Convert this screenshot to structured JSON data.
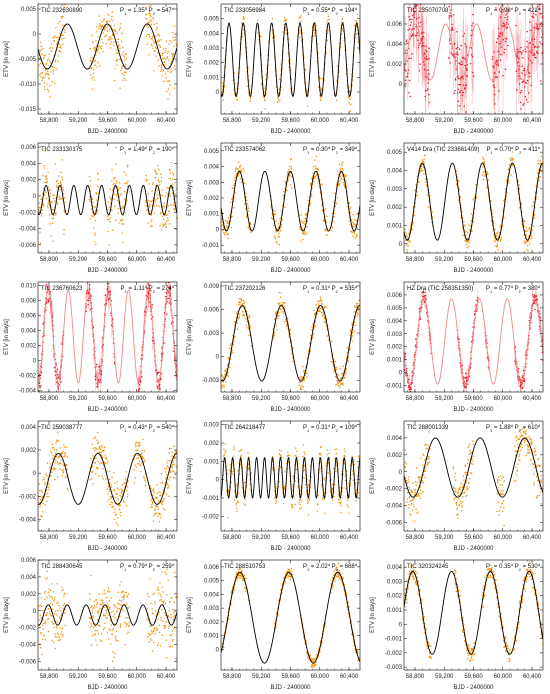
{
  "colors": {
    "orange": "#f5950f",
    "red": "#e8121e",
    "model": "#000000",
    "model_faint": "#f08a8a"
  },
  "shared": {
    "xlabel": "BJD - 2400000",
    "ylabel": "ETV [in days]",
    "xticks": [
      "58,800",
      "59,200",
      "59,600",
      "60,000",
      "60,400"
    ],
    "xtick_values": [
      58800,
      59200,
      59600,
      60000,
      60400
    ],
    "xlim": [
      58650,
      60550
    ]
  },
  "chart_data": [
    {
      "type": "scatter",
      "title": "TIC 232630890",
      "p1": "1.35",
      "p2": "547",
      "color": "orange",
      "faint": false,
      "ylim": [
        -0.016,
        0.006
      ],
      "yticks": [
        "0.005",
        "0",
        "-0.005",
        "-0.010",
        "-0.015"
      ],
      "ytick_values": [
        0.005,
        0,
        -0.005,
        -0.01,
        -0.015
      ],
      "model": {
        "amp": 0.0045,
        "offset": -0.0025,
        "period": 547,
        "phase": 59050
      },
      "noise": 0.0025,
      "coverage": [
        [
          58660,
          59020
        ],
        [
          59360,
          59860
        ],
        [
          60120,
          60550
        ]
      ]
    },
    {
      "type": "scatter",
      "title": "TIC 233056984",
      "p1": "0.55",
      "p2": "194",
      "color": "orange",
      "faint": false,
      "ylim": [
        -0.0015,
        0.006
      ],
      "yticks": [
        "0.005",
        "0.004",
        "0.003",
        "0.002",
        "0.001",
        "0"
      ],
      "ytick_values": [
        0.005,
        0.004,
        0.003,
        0.002,
        0.001,
        0
      ],
      "model": {
        "amp": 0.0025,
        "offset": 0.0022,
        "period": 194,
        "phase": 58760
      },
      "noise": 0.0004,
      "coverage": [
        [
          58660,
          58740
        ],
        [
          58820,
          59060
        ],
        [
          59150,
          59300
        ],
        [
          59350,
          59620
        ],
        [
          59700,
          59840
        ],
        [
          59880,
          60130
        ],
        [
          60220,
          60540
        ]
      ]
    },
    {
      "type": "scatter",
      "title": "TIC 235070708",
      "p1": "0.98",
      "p2": "421",
      "color": "red",
      "faint": true,
      "ylim": [
        -0.003,
        0.008
      ],
      "yticks": [
        "0.006",
        "0.004",
        "0.002",
        "0"
      ],
      "ytick_values": [
        0.006,
        0.004,
        0.002,
        0
      ],
      "model": {
        "amp": 0.0028,
        "offset": 0.0032,
        "period": 421,
        "phase": 58800
      },
      "noise": 0.0018,
      "coverage": [
        [
          58660,
          59000
        ],
        [
          59260,
          59520
        ],
        [
          59560,
          59600
        ],
        [
          59860,
          60080
        ],
        [
          60180,
          60550
        ]
      ]
    },
    {
      "type": "scatter",
      "title": "TIC 233130175",
      "p1": "1.49",
      "p2": "190",
      "color": "orange",
      "faint": false,
      "ylim": [
        -0.007,
        0.0065
      ],
      "yticks": [
        "0.006",
        "0.004",
        "0.002",
        "0",
        "-0.002",
        "-0.004",
        "-0.006"
      ],
      "ytick_values": [
        0.006,
        0.004,
        0.002,
        0,
        -0.002,
        -0.004,
        -0.006
      ],
      "model": {
        "amp": 0.0018,
        "offset": -0.0005,
        "period": 190,
        "phase": 58760
      },
      "noise": 0.0016,
      "coverage": [
        [
          58660,
          59020
        ],
        [
          59350,
          59480
        ],
        [
          59600,
          59880
        ],
        [
          60120,
          60550
        ]
      ]
    },
    {
      "type": "scatter",
      "title": "TIC 233574062",
      "p1": "0.30",
      "p2": "349",
      "color": "orange",
      "faint": false,
      "ylim": [
        -0.0015,
        0.0055
      ],
      "yticks": [
        "0.005",
        "0.004",
        "0.003",
        "0.002",
        "0.001",
        "0",
        "-0.001"
      ],
      "ytick_values": [
        0.005,
        0.004,
        0.003,
        0.002,
        0.001,
        0,
        -0.001
      ],
      "model": {
        "amp": 0.0019,
        "offset": 0.0018,
        "period": 349,
        "phase": 58900
      },
      "noise": 0.0004,
      "coverage": [
        [
          58660,
          59060
        ],
        [
          59330,
          59620
        ],
        [
          59720,
          60100
        ],
        [
          60160,
          60520
        ]
      ]
    },
    {
      "type": "scatter",
      "title": "V414 Dra (TIC 233661409)",
      "p1": "0.70",
      "p2": "411",
      "color": "orange",
      "faint": false,
      "ylim": [
        -0.0005,
        0.0055
      ],
      "yticks": [
        "0.005",
        "0.004",
        "0.003",
        "0.002",
        "0.001",
        "0"
      ],
      "ytick_values": [
        0.005,
        0.004,
        0.003,
        0.002,
        0.001,
        0
      ],
      "model": {
        "amp": 0.0021,
        "offset": 0.0023,
        "period": 411,
        "phase": 58900
      },
      "noise": 0.0003,
      "coverage": [
        [
          58660,
          59040
        ],
        [
          59360,
          59640
        ],
        [
          59720,
          60140
        ],
        [
          60200,
          60540
        ]
      ]
    },
    {
      "type": "scatter",
      "title": "TIC 236760623",
      "p1": "1.11",
      "p2": "274",
      "color": "red",
      "faint": true,
      "ylim": [
        -0.0042,
        0.0105
      ],
      "yticks": [
        "0.010",
        "0.008",
        "0.006",
        "0.004",
        "0.002",
        "0",
        "-0.002",
        "-0.004"
      ],
      "ytick_values": [
        0.01,
        0.008,
        0.006,
        0.004,
        0.002,
        0,
        -0.002,
        -0.004
      ],
      "model": {
        "amp": 0.0062,
        "offset": 0.0032,
        "period": 274,
        "phase": 58790
      },
      "noise": 0.0008,
      "coverage": [
        [
          58660,
          59000
        ],
        [
          59300,
          59700
        ],
        [
          60020,
          60550
        ]
      ]
    },
    {
      "type": "scatter",
      "title": "TIC 237202126",
      "p1": "0.31",
      "p2": "535",
      "color": "orange",
      "faint": false,
      "ylim": [
        -0.0045,
        0.0095
      ],
      "yticks": [
        "0.009",
        "0.006",
        "0.003",
        "0",
        "-0.003"
      ],
      "ytick_values": [
        0.009,
        0.006,
        0.003,
        0,
        -0.003
      ],
      "model": {
        "amp": 0.0048,
        "offset": 0.0017,
        "period": 535,
        "phase": 58940
      },
      "noise": 0.0007,
      "coverage": [
        [
          58660,
          59060
        ],
        [
          59360,
          59640
        ],
        [
          59720,
          60120
        ],
        [
          60160,
          60540
        ]
      ]
    },
    {
      "type": "scatter",
      "title": "HZ Dra (TIC 258351350)",
      "p1": "0.77",
      "p2": "380",
      "color": "red",
      "faint": true,
      "ylim": [
        -0.0015,
        0.007
      ],
      "yticks": [
        "0.006",
        "0.005",
        "0.004",
        "0.003",
        "0.002",
        "0.001",
        "0",
        "-0.001"
      ],
      "ytick_values": [
        0.006,
        0.005,
        0.004,
        0.003,
        0.002,
        0.001,
        0,
        -0.001
      ],
      "model": {
        "amp": 0.0033,
        "offset": 0.0024,
        "period": 380,
        "phase": 58920
      },
      "noise": 0.0003,
      "coverage": [
        [
          58660,
          59020
        ],
        [
          59380,
          59660
        ],
        [
          59760,
          59810
        ],
        [
          60160,
          60550
        ]
      ]
    },
    {
      "type": "scatter",
      "title": "TIC 259038777",
      "p1": "0.43",
      "p2": "540",
      "color": "orange",
      "faint": false,
      "ylim": [
        -0.005,
        0.0045
      ],
      "yticks": [
        "0.004",
        "0.002",
        "0",
        "-0.002",
        "-0.004"
      ],
      "ytick_values": [
        0.004,
        0.002,
        0,
        -0.002,
        -0.004
      ],
      "model": {
        "amp": 0.0022,
        "offset": -0.0005,
        "period": 540,
        "phase": 59470
      },
      "noise": 0.0009,
      "coverage": [
        [
          58660,
          59060
        ],
        [
          59360,
          59880
        ],
        [
          59960,
          60120
        ],
        [
          60180,
          60540
        ]
      ]
    },
    {
      "type": "scatter",
      "title": "TIC 264218477",
      "p1": "0.31",
      "p2": "109",
      "color": "orange",
      "faint": false,
      "ylim": [
        -0.0028,
        0.0032
      ],
      "yticks": [
        "0.003",
        "0.002",
        "0.001",
        "0",
        "-0.001",
        "-0.002"
      ],
      "ytick_values": [
        0.003,
        0.002,
        0.001,
        0,
        -0.001,
        -0.002
      ],
      "model": {
        "amp": 0.0011,
        "offset": 0.0001,
        "period": 109,
        "phase": 58700
      },
      "noise": 0.00045,
      "coverage": [
        [
          58680,
          59060
        ],
        [
          59350,
          59880
        ],
        [
          59960,
          60540
        ]
      ]
    },
    {
      "type": "scatter",
      "title": "TIC 288001339",
      "p1": "1.88",
      "p2": "610",
      "color": "orange",
      "faint": false,
      "ylim": [
        -0.007,
        0.006
      ],
      "yticks": [
        "0.004",
        "0.002",
        "0",
        "-0.002",
        "-0.004",
        "-0.006"
      ],
      "ytick_values": [
        0.004,
        0.002,
        0,
        -0.002,
        -0.004,
        -0.006
      ],
      "model": {
        "amp": 0.0035,
        "offset": 0.0005,
        "period": 610,
        "phase": 59080
      },
      "noise": 0.0013,
      "coverage": [
        [
          58660,
          59000
        ],
        [
          59320,
          59600
        ],
        [
          59920,
          60020
        ],
        [
          60160,
          60530
        ]
      ]
    },
    {
      "type": "scatter",
      "title": "TIC 288430645",
      "p1": "0.79",
      "p2": "259",
      "color": "orange",
      "faint": false,
      "ylim": [
        -0.007,
        0.006
      ],
      "yticks": [
        "0.006",
        "0.004",
        "0.002",
        "0",
        "-0.002",
        "-0.004",
        "-0.006"
      ],
      "ytick_values": [
        0.006,
        0.004,
        0.002,
        0,
        -0.002,
        -0.004,
        -0.006
      ],
      "model": {
        "amp": 0.0012,
        "offset": -0.0005,
        "period": 259,
        "phase": 58790
      },
      "noise": 0.0019,
      "coverage": [
        [
          58660,
          59020
        ],
        [
          59350,
          59900
        ],
        [
          60140,
          60540
        ]
      ]
    },
    {
      "type": "scatter",
      "title": "TIC 288510753",
      "p1": "2.02",
      "p2": "668",
      "color": "orange",
      "faint": false,
      "ylim": [
        -0.0015,
        0.0065
      ],
      "yticks": [
        "0.006",
        "0.005",
        "0.004",
        "0.003",
        "0.002",
        "0.001",
        "0"
      ],
      "ytick_values": [
        0.006,
        0.005,
        0.004,
        0.003,
        0.002,
        0.001,
        0
      ],
      "model": {
        "amp": 0.0033,
        "offset": 0.0023,
        "period": 668,
        "phase": 58910
      },
      "noise": 0.0002,
      "coverage": [
        [
          58660,
          59020
        ],
        [
          59380,
          59620
        ],
        [
          59740,
          60080
        ],
        [
          60150,
          60540
        ]
      ]
    },
    {
      "type": "scatter",
      "title": "TIC 320324245",
      "p1": "0.35",
      "p2": "530",
      "color": "orange",
      "faint": false,
      "ylim": [
        -0.0032,
        0.0045
      ],
      "yticks": [
        "0.004",
        "0.003",
        "0.002",
        "0.001",
        "0",
        "-0.001",
        "-0.002",
        "-0.003"
      ],
      "ytick_values": [
        0.004,
        0.003,
        0.002,
        0.001,
        0,
        -0.001,
        -0.002,
        -0.003
      ],
      "model": {
        "amp": 0.0029,
        "offset": 0.0008,
        "period": 530,
        "phase": 58770
      },
      "noise": 0.0003,
      "coverage": [
        [
          58660,
          59020
        ],
        [
          59340,
          59620
        ],
        [
          59720,
          60100
        ],
        [
          60150,
          60550
        ]
      ]
    }
  ]
}
